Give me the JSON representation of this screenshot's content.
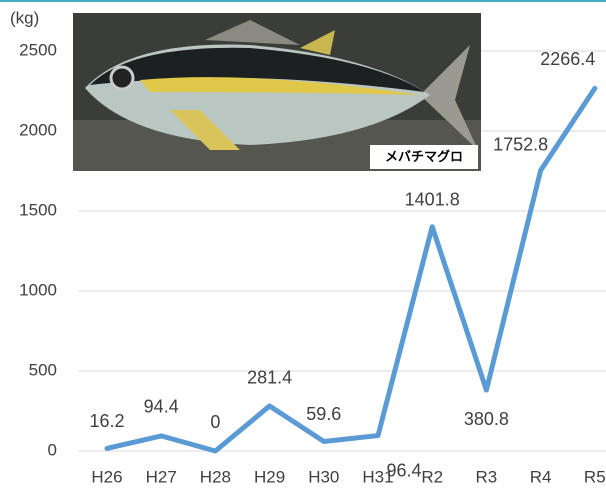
{
  "chart_data": {
    "type": "line",
    "y_label": "(kg)",
    "photo_label": "メバチマグロ",
    "categories": [
      "H26",
      "H27",
      "H28",
      "H29",
      "H30",
      "H31",
      "R2",
      "R3",
      "R4",
      "R5"
    ],
    "values": [
      16.2,
      94.4,
      0,
      281.4,
      59.6,
      96.4,
      1401.8,
      380.8,
      1752.8,
      2266.4
    ],
    "color": "#5b9bd5",
    "ylim": [
      0,
      2500
    ],
    "yticks": [
      0,
      500,
      1000,
      1500,
      2000,
      2500
    ],
    "grid": true
  }
}
